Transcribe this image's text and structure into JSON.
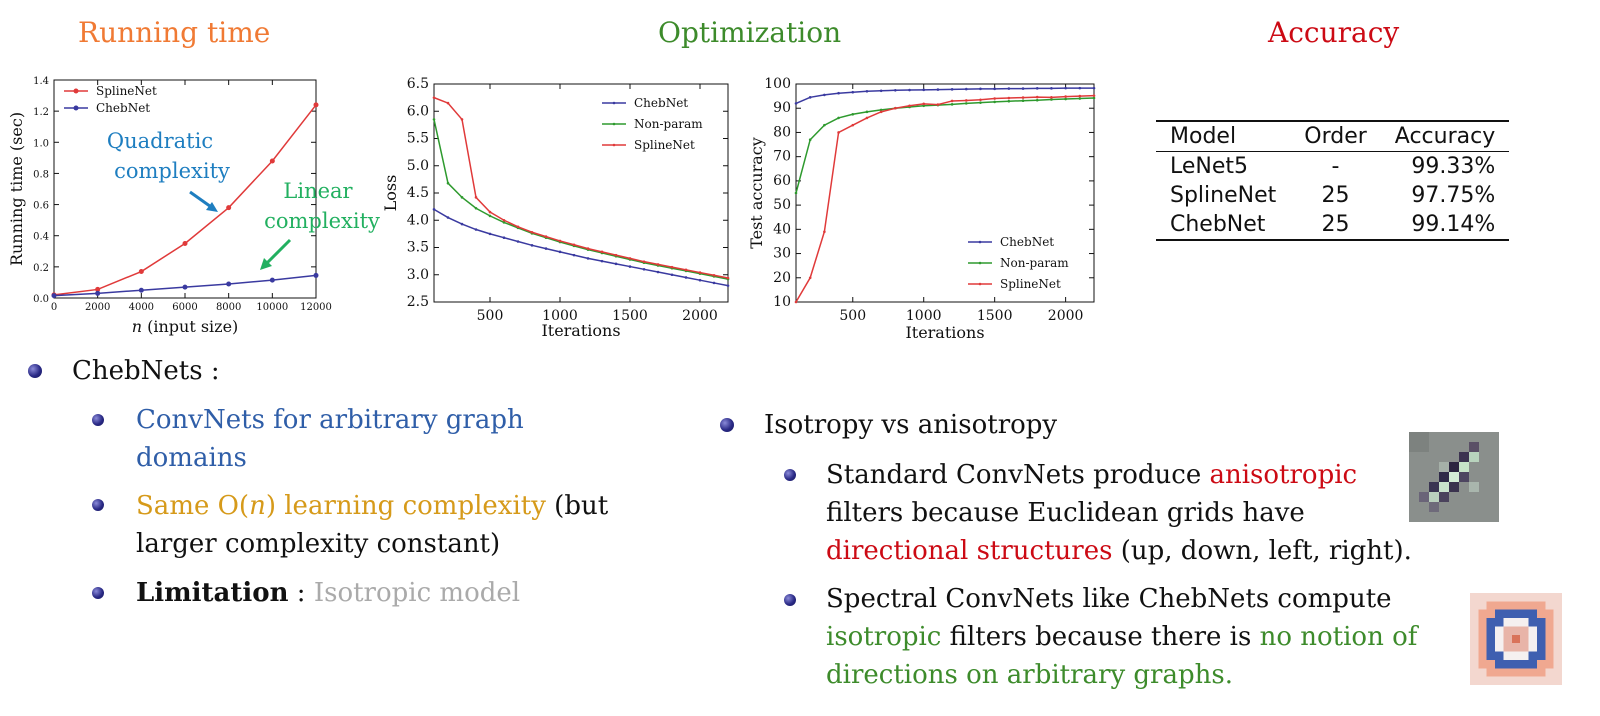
{
  "headings": {
    "running_time": {
      "text": "Running time",
      "color": "#f07a34"
    },
    "optimization": {
      "text": "Optimization",
      "color": "#3d8b2b"
    },
    "accuracy": {
      "text": "Accuracy",
      "color": "#cc0a14"
    }
  },
  "colors": {
    "chebnet": "#3a3aa0",
    "nonparam": "#2e9a2e",
    "splinenet": "#e03a3a",
    "blue_text": "#2f5ea8",
    "orange_text": "#d69a1a",
    "gray_text": "#aaaaaa",
    "red_text": "#cc0a14",
    "green_text": "#3d8b2b"
  },
  "chart_data": [
    {
      "type": "line",
      "title": "",
      "xlabel": "n (input size)",
      "ylabel": "Running time (sec)",
      "xlim": [
        0,
        12000
      ],
      "ylim": [
        0,
        1.4
      ],
      "x_ticks": [
        "0",
        "2000",
        "4000",
        "6000",
        "8000",
        "10000",
        "12000"
      ],
      "y_ticks": [
        "0.0",
        "0.2",
        "0.4",
        "0.6",
        "0.8",
        "1.0",
        "1.2",
        "1.4"
      ],
      "legend_position": "top-left",
      "series": [
        {
          "name": "SplineNet",
          "x": [
            0,
            2000,
            4000,
            6000,
            8000,
            10000,
            12000
          ],
          "y": [
            0.02,
            0.055,
            0.17,
            0.35,
            0.58,
            0.88,
            1.24
          ]
        },
        {
          "name": "ChebNet",
          "x": [
            0,
            2000,
            4000,
            6000,
            8000,
            10000,
            12000
          ],
          "y": [
            0.015,
            0.03,
            0.05,
            0.07,
            0.09,
            0.115,
            0.145
          ]
        }
      ],
      "annotations": [
        {
          "text_lines": [
            "Quadratic",
            "complexity"
          ]
        },
        {
          "text_lines": [
            "Linear",
            "complexity"
          ]
        }
      ]
    },
    {
      "type": "line",
      "title": "",
      "xlabel": "Iterations",
      "ylabel": "Loss",
      "xlim": [
        100,
        2200
      ],
      "ylim": [
        2.5,
        6.5
      ],
      "x_ticks": [
        "500",
        "1000",
        "1500",
        "2000"
      ],
      "y_ticks": [
        "2.5",
        "3.0",
        "3.5",
        "4.0",
        "4.5",
        "5.0",
        "5.5",
        "6.0",
        "6.5"
      ],
      "legend_position": "top-right",
      "series": [
        {
          "name": "ChebNet",
          "x": [
            100,
            200,
            300,
            400,
            500,
            600,
            700,
            800,
            900,
            1000,
            1100,
            1200,
            1300,
            1400,
            1500,
            1600,
            1700,
            1800,
            1900,
            2000,
            2100,
            2200
          ],
          "y": [
            4.2,
            4.05,
            3.93,
            3.83,
            3.75,
            3.68,
            3.61,
            3.54,
            3.48,
            3.42,
            3.36,
            3.3,
            3.25,
            3.2,
            3.15,
            3.1,
            3.05,
            3.0,
            2.95,
            2.9,
            2.85,
            2.8
          ]
        },
        {
          "name": "Non-param",
          "x": [
            100,
            200,
            300,
            400,
            500,
            600,
            700,
            800,
            900,
            1000,
            1100,
            1200,
            1300,
            1400,
            1500,
            1600,
            1700,
            1800,
            1900,
            2000,
            2100,
            2200
          ],
          "y": [
            5.85,
            4.68,
            4.42,
            4.22,
            4.08,
            3.96,
            3.86,
            3.76,
            3.68,
            3.6,
            3.53,
            3.46,
            3.4,
            3.34,
            3.28,
            3.22,
            3.17,
            3.12,
            3.07,
            3.02,
            2.97,
            2.92
          ]
        },
        {
          "name": "SplineNet",
          "x": [
            100,
            200,
            300,
            400,
            500,
            600,
            700,
            800,
            900,
            1000,
            1100,
            1200,
            1300,
            1400,
            1500,
            1600,
            1700,
            1800,
            1900,
            2000,
            2100,
            2200
          ],
          "y": [
            6.25,
            6.15,
            5.85,
            4.42,
            4.15,
            4.0,
            3.88,
            3.78,
            3.7,
            3.62,
            3.55,
            3.48,
            3.42,
            3.36,
            3.3,
            3.24,
            3.19,
            3.14,
            3.09,
            3.04,
            2.99,
            2.94
          ]
        }
      ]
    },
    {
      "type": "line",
      "title": "",
      "xlabel": "Iterations",
      "ylabel": "Test accuracy",
      "xlim": [
        100,
        2200
      ],
      "ylim": [
        10,
        100
      ],
      "x_ticks": [
        "500",
        "1000",
        "1500",
        "2000"
      ],
      "y_ticks": [
        "10",
        "20",
        "30",
        "40",
        "50",
        "60",
        "70",
        "80",
        "90",
        "100"
      ],
      "legend_position": "bottom-right",
      "series": [
        {
          "name": "ChebNet",
          "x": [
            100,
            200,
            300,
            400,
            500,
            600,
            700,
            800,
            900,
            1000,
            1100,
            1200,
            1300,
            1400,
            1500,
            1600,
            1700,
            1800,
            1900,
            2000,
            2100,
            2200
          ],
          "y": [
            92,
            94.5,
            95.5,
            96.2,
            96.6,
            97,
            97.2,
            97.4,
            97.5,
            97.6,
            97.7,
            97.8,
            97.9,
            98,
            98,
            98.1,
            98.1,
            98.2,
            98.2,
            98.3,
            98.3,
            98.3
          ]
        },
        {
          "name": "Non-param",
          "x": [
            100,
            200,
            300,
            400,
            500,
            600,
            700,
            800,
            900,
            1000,
            1100,
            1200,
            1300,
            1400,
            1500,
            1600,
            1700,
            1800,
            1900,
            2000,
            2100,
            2200
          ],
          "y": [
            55,
            77,
            83,
            86,
            87.5,
            88.5,
            89.3,
            90,
            90.5,
            91,
            91.3,
            91.6,
            92,
            92.3,
            92.6,
            92.9,
            93.1,
            93.3,
            93.6,
            93.8,
            94,
            94.2
          ]
        },
        {
          "name": "SplineNet",
          "x": [
            100,
            200,
            300,
            400,
            500,
            600,
            700,
            800,
            900,
            1000,
            1100,
            1200,
            1300,
            1400,
            1500,
            1600,
            1700,
            1800,
            1900,
            2000,
            2100,
            2200
          ],
          "y": [
            10,
            20,
            39,
            80,
            83,
            86,
            88.5,
            90,
            91,
            91.8,
            91.5,
            93,
            93.2,
            93.5,
            94,
            94.2,
            94.4,
            94.6,
            94.5,
            94.8,
            95,
            95.2
          ]
        }
      ]
    }
  ],
  "table": {
    "headers": [
      "Model",
      "Order",
      "Accuracy"
    ],
    "rows": [
      [
        "LeNet5",
        "-",
        "99.33%"
      ],
      [
        "SplineNet",
        "25",
        "97.75%"
      ],
      [
        "ChebNet",
        "25",
        "99.14%"
      ]
    ]
  },
  "left_bullets": {
    "main": "ChebNets :",
    "sub1_line1": "ConvNets for arbitrary graph",
    "sub1_line2": "domains",
    "sub2_colored": "Same O(",
    "sub2_var": "n",
    "sub2_colored_end": ") learning complexity",
    "sub2_rest_line1": " (but",
    "sub2_line2": "larger complexity constant)",
    "sub3_bold": "Limitation",
    "sub3_sep": " : ",
    "sub3_gray": "Isotropic model"
  },
  "right_bullets": {
    "main": "Isotropy vs anisotropy",
    "sub1_line1_a": "Standard ConvNets produce ",
    "sub1_line1_red": "anisotropic",
    "sub1_line2": "filters because Euclidean grids have",
    "sub1_line3_red": "directional structures",
    "sub1_line3_rest": " (up, down, left, right).",
    "sub2_line1": "Spectral ConvNets like ChebNets compute",
    "sub2_line2_green": "isotropic",
    "sub2_line2_mid": " filters because there is ",
    "sub2_line2_green2": "no notion of",
    "sub2_line3_green": "directions on arbitrary graphs."
  }
}
